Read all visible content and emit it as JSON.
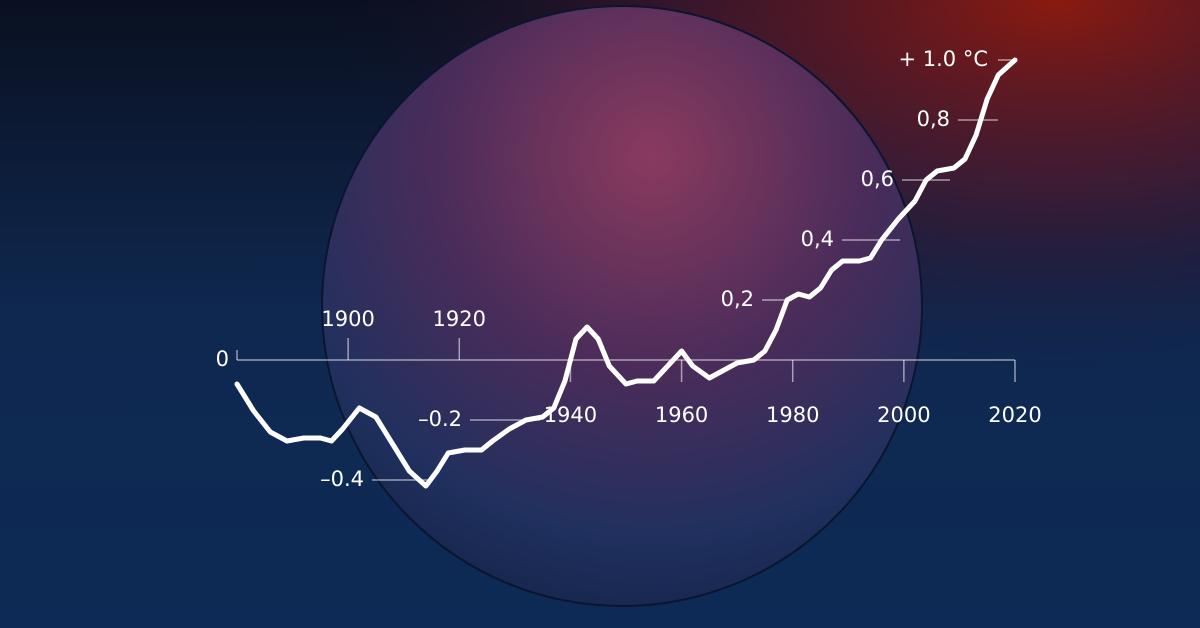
{
  "chart_data": {
    "type": "line",
    "x": [
      1880,
      1883,
      1886,
      1889,
      1892,
      1895,
      1897,
      1899,
      1902,
      1905,
      1908,
      1911,
      1914,
      1916,
      1918,
      1921,
      1924,
      1926,
      1929,
      1932,
      1935,
      1937,
      1939,
      1941,
      1943,
      1945,
      1947,
      1950,
      1952,
      1955,
      1957,
      1960,
      1962,
      1965,
      1968,
      1970,
      1973,
      1975,
      1977,
      1979,
      1981,
      1983,
      1985,
      1987,
      1989,
      1992,
      1994,
      1996,
      1999,
      2002,
      2004,
      2006,
      2009,
      2011,
      2013,
      2015,
      2017,
      2020
    ],
    "series": [
      {
        "color": "#ffffff",
        "values": [
          -0.08,
          -0.17,
          -0.24,
          -0.27,
          -0.26,
          -0.26,
          -0.27,
          -0.23,
          -0.16,
          -0.19,
          -0.28,
          -0.37,
          -0.42,
          -0.37,
          -0.31,
          -0.3,
          -0.3,
          -0.27,
          -0.23,
          -0.2,
          -0.19,
          -0.16,
          -0.07,
          0.07,
          0.11,
          0.07,
          -0.02,
          -0.08,
          -0.07,
          -0.07,
          -0.03,
          0.03,
          -0.02,
          -0.06,
          -0.03,
          -0.01,
          0.0,
          0.03,
          0.1,
          0.2,
          0.22,
          0.21,
          0.24,
          0.3,
          0.33,
          0.33,
          0.34,
          0.4,
          0.47,
          0.53,
          0.6,
          0.63,
          0.64,
          0.67,
          0.75,
          0.87,
          0.95,
          1.0
        ]
      }
    ],
    "xlim": [
      1880,
      2020
    ],
    "xticks": [
      1900,
      1920,
      1940,
      1960,
      1980,
      2000,
      2020
    ],
    "ylim": [
      -0.4,
      1.0
    ],
    "yticks": [
      {
        "value": -0.4,
        "label": "–0.4"
      },
      {
        "value": -0.2,
        "label": "–0.2"
      },
      0,
      {
        "value": 0.2,
        "label": "0,2"
      },
      {
        "value": 0.4,
        "label": "0,4"
      },
      {
        "value": 0.6,
        "label": "0,6"
      },
      {
        "value": 0.8,
        "label": "0,8"
      },
      {
        "value": 1.0,
        "label": "+ 1.0 °C"
      }
    ]
  }
}
